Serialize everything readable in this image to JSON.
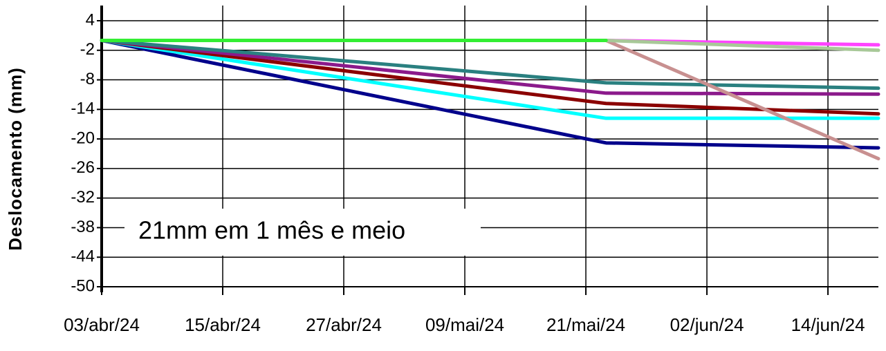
{
  "chart_data": {
    "type": "line",
    "ylabel": "Deslocamento (mm)",
    "annotation": "21mm em 1 mês e meio",
    "xlim": [
      "2024-04-03",
      "2024-06-19"
    ],
    "xticks": [
      {
        "value": "2024-04-03",
        "label": "03/abr/24"
      },
      {
        "value": "2024-04-15",
        "label": "15/abr/24"
      },
      {
        "value": "2024-04-27",
        "label": "27/abr/24"
      },
      {
        "value": "2024-05-09",
        "label": "09/mai/24"
      },
      {
        "value": "2024-05-21",
        "label": "21/mai/24"
      },
      {
        "value": "2024-06-02",
        "label": "02/jun/24"
      },
      {
        "value": "2024-06-14",
        "label": "14/jun/24"
      }
    ],
    "ylim": [
      -50,
      4
    ],
    "yticks": [
      4,
      -2,
      -8,
      -14,
      -20,
      -26,
      -32,
      -38,
      -44,
      -50
    ],
    "grid": true,
    "x": [
      "2024-04-03",
      "2024-05-23",
      "2024-06-19"
    ],
    "series": [
      {
        "color": "#00008b",
        "values": [
          0,
          -20.8,
          -21.8
        ]
      },
      {
        "color": "#00ffff",
        "values": [
          0,
          -15.8,
          -15.8
        ]
      },
      {
        "color": "#8b0000",
        "values": [
          0,
          -12.8,
          -14.9
        ]
      },
      {
        "color": "#8b1a8b",
        "values": [
          0,
          -10.7,
          -10.9
        ]
      },
      {
        "color": "#2a8080",
        "values": [
          0,
          -8.6,
          -9.7
        ]
      },
      {
        "color": "#c89090",
        "values": [
          null,
          0,
          -24
        ]
      },
      {
        "color": "#ff44ff",
        "values": [
          null,
          0,
          -0.9
        ]
      },
      {
        "color": "#a8c898",
        "values": [
          null,
          0,
          -2
        ]
      },
      {
        "color": "#33ee33",
        "values": [
          0,
          0,
          null
        ]
      }
    ]
  }
}
